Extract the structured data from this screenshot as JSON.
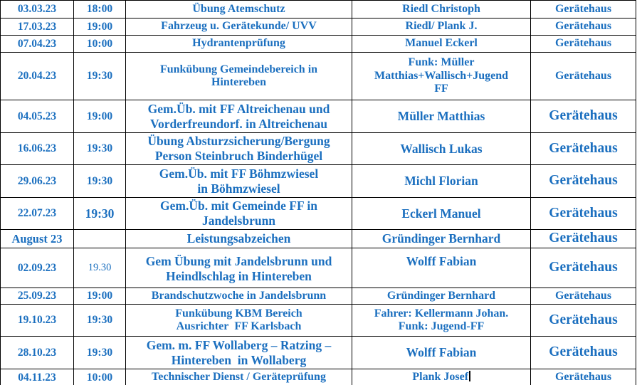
{
  "colors": {
    "text_blue": "#1B6FBF",
    "border_black": "#000000",
    "background": "#FFFFFF"
  },
  "table": {
    "rows": [
      {
        "date": "03.03.23",
        "time": "18:00",
        "event": "Übung Atemschutz",
        "person": "Riedl Christoph",
        "location": "Gerätehaus"
      },
      {
        "date": "17.03.23",
        "time": "19:00",
        "event": "Fahrzeug u. Gerätekunde/ UVV",
        "person": "Riedl/ Plank J.",
        "location": "Gerätehaus"
      },
      {
        "date": "07.04.23",
        "time": "10:00",
        "event": "Hydrantenprüfung",
        "person": "Manuel Eckerl",
        "location": "Gerätehaus"
      },
      {
        "date": "20.04.23",
        "time": "19:30",
        "event": "Funkübung Gemeindebereich in\nHintereben",
        "person": "Funk: Müller\nMatthias+Wallisch+Jugend\nFF",
        "location": "Gerätehaus"
      },
      {
        "date": "04.05.23",
        "time": "19:00",
        "event": "Gem.Üb. mit FF Altreichenau und\nVorderfreundorf. in Altreichenau",
        "person": "Müller Matthias",
        "location": "Gerätehaus"
      },
      {
        "date": "16.06.23",
        "time": "19:30",
        "event": "Übung Absturzsicherung/Bergung\nPerson Steinbruch Binderhügel",
        "person": "Wallisch Lukas",
        "location": "Gerätehaus"
      },
      {
        "date": "29.06.23",
        "time": "19:30",
        "event": "Gem.Üb. mit FF Böhmzwiesel\nin Böhmzwiesel",
        "person": "Michl Florian",
        "location": "Gerätehaus"
      },
      {
        "date": "22.07.23",
        "time": "19:30",
        "event": "Gem.Üb. mit Gemeinde FF in\nJandelsbrunn",
        "person": "Eckerl Manuel",
        "location": "Gerätehaus"
      },
      {
        "date": "August 23",
        "time": "",
        "event": "Leistungsabzeichen",
        "person": "Gründinger Bernhard",
        "location": "Gerätehaus"
      },
      {
        "date": "02.09.23",
        "time": "19.30",
        "event": "Gem Übung mit Jandelsbrunn und\nHeindlschlag in Hintereben",
        "person": "Wolff Fabian",
        "location": "Gerätehaus"
      },
      {
        "date": "25.09.23",
        "time": "19:00",
        "event": "Brandschutzwoche in Jandelsbrunn",
        "person": "Gründinger Bernhard",
        "location": "Gerätehaus"
      },
      {
        "date": "19.10.23",
        "time": "19:30",
        "event": "Funkübung KBM Bereich\nAusrichter  FF Karlsbach",
        "person": "Fahrer: Kellermann Johan.\nFunk: Jugend-FF",
        "location": "Gerätehaus"
      },
      {
        "date": "28.10.23",
        "time": "19:30",
        "event": "Gem. m. FF Wollaberg – Ratzing –\nHintereben  in Wollaberg",
        "person": "Wolff Fabian",
        "location": "Gerätehaus"
      },
      {
        "date": "04.11.23",
        "time": "10:00",
        "event": "Technischer Dienst / Geräteprüfung",
        "person": "Plank Josef",
        "location": "Gerätehaus",
        "has_text_cursor": true
      }
    ]
  }
}
